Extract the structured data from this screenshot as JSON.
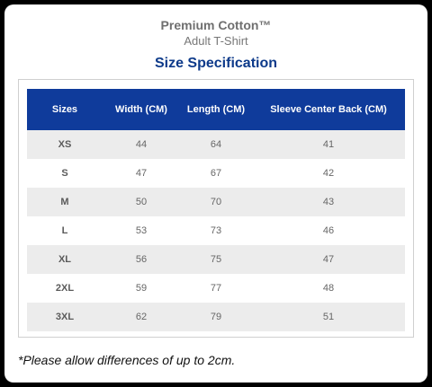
{
  "product": {
    "name": "Premium Cotton™",
    "subtitle": "Adult T-Shirt"
  },
  "spec_title": "Size Specification",
  "table": {
    "headers": [
      "Sizes",
      "Width (CM)",
      "Length (CM)",
      "Sleeve Center Back (CM)"
    ],
    "rows": [
      [
        "XS",
        "44",
        "64",
        "41"
      ],
      [
        "S",
        "47",
        "67",
        "42"
      ],
      [
        "M",
        "50",
        "70",
        "43"
      ],
      [
        "L",
        "53",
        "73",
        "46"
      ],
      [
        "XL",
        "56",
        "75",
        "47"
      ],
      [
        "2XL",
        "59",
        "77",
        "48"
      ],
      [
        "3XL",
        "62",
        "79",
        "51"
      ]
    ]
  },
  "footnote": "*Please allow differences of up to 2cm.",
  "colors": {
    "header_bg": "#0f3b9b",
    "title": "#0d3a8a",
    "stripe": "#ececec"
  }
}
